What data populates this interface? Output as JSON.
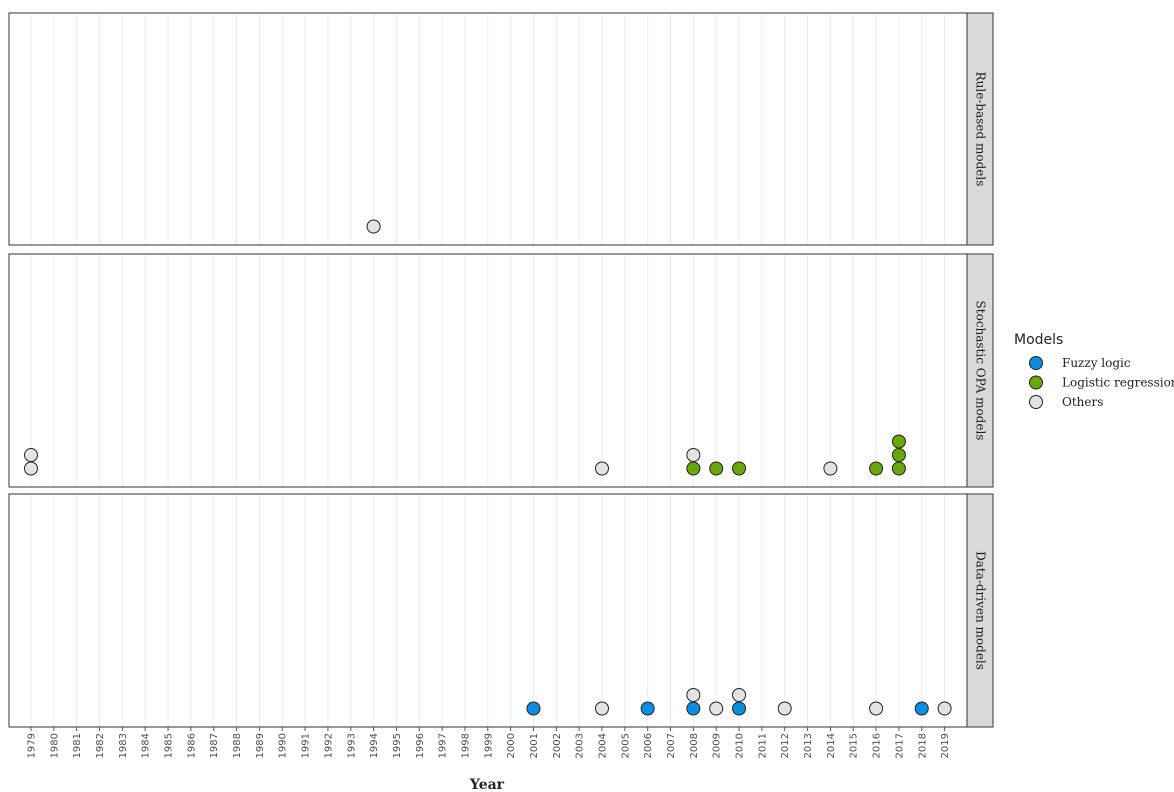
{
  "chart_data": {
    "type": "scatter",
    "title": "",
    "xlabel": "Year",
    "ylabel": "",
    "x_categories": [
      "1979",
      "1980",
      "1981",
      "1982",
      "1983",
      "1984",
      "1985",
      "1986",
      "1987",
      "1988",
      "1989",
      "1990",
      "1991",
      "1992",
      "1993",
      "1994",
      "1995",
      "1996",
      "1997",
      "1998",
      "1999",
      "2000",
      "2001",
      "2002",
      "2003",
      "2004",
      "2005",
      "2006",
      "2007",
      "2008",
      "2009",
      "2010",
      "2011",
      "2012",
      "2013",
      "2014",
      "2015",
      "2016",
      "2017",
      "2018",
      "2019"
    ],
    "grid": true,
    "legend": {
      "title": "Models",
      "position": "right",
      "items": [
        {
          "label": "Fuzzy logic",
          "color": "#0c8ee0"
        },
        {
          "label": "Logistic regression",
          "color": "#6aa80a"
        },
        {
          "label": "Others",
          "color": "#e3e3e3"
        }
      ]
    },
    "facets": [
      {
        "label": "Rule-based models",
        "points": [
          {
            "year": "1994",
            "stack": 1,
            "model": "Others"
          }
        ]
      },
      {
        "label": "Stochastic OPA models",
        "points": [
          {
            "year": "1979",
            "stack": 1,
            "model": "Others"
          },
          {
            "year": "1979",
            "stack": 2,
            "model": "Others"
          },
          {
            "year": "2004",
            "stack": 1,
            "model": "Others"
          },
          {
            "year": "2008",
            "stack": 1,
            "model": "Logistic regression"
          },
          {
            "year": "2008",
            "stack": 2,
            "model": "Others"
          },
          {
            "year": "2009",
            "stack": 1,
            "model": "Logistic regression"
          },
          {
            "year": "2010",
            "stack": 1,
            "model": "Logistic regression"
          },
          {
            "year": "2014",
            "stack": 1,
            "model": "Others"
          },
          {
            "year": "2016",
            "stack": 1,
            "model": "Logistic regression"
          },
          {
            "year": "2017",
            "stack": 1,
            "model": "Logistic regression"
          },
          {
            "year": "2017",
            "stack": 2,
            "model": "Logistic regression"
          },
          {
            "year": "2017",
            "stack": 3,
            "model": "Logistic regression"
          }
        ]
      },
      {
        "label": "Data-driven models",
        "points": [
          {
            "year": "2001",
            "stack": 1,
            "model": "Fuzzy logic"
          },
          {
            "year": "2004",
            "stack": 1,
            "model": "Others"
          },
          {
            "year": "2006",
            "stack": 1,
            "model": "Fuzzy logic"
          },
          {
            "year": "2008",
            "stack": 1,
            "model": "Fuzzy logic"
          },
          {
            "year": "2008",
            "stack": 2,
            "model": "Others"
          },
          {
            "year": "2009",
            "stack": 1,
            "model": "Others"
          },
          {
            "year": "2010",
            "stack": 1,
            "model": "Fuzzy logic"
          },
          {
            "year": "2010",
            "stack": 2,
            "model": "Others"
          },
          {
            "year": "2012",
            "stack": 1,
            "model": "Others"
          },
          {
            "year": "2016",
            "stack": 1,
            "model": "Others"
          },
          {
            "year": "2018",
            "stack": 1,
            "model": "Fuzzy logic"
          },
          {
            "year": "2019",
            "stack": 1,
            "model": "Others"
          }
        ]
      }
    ]
  }
}
